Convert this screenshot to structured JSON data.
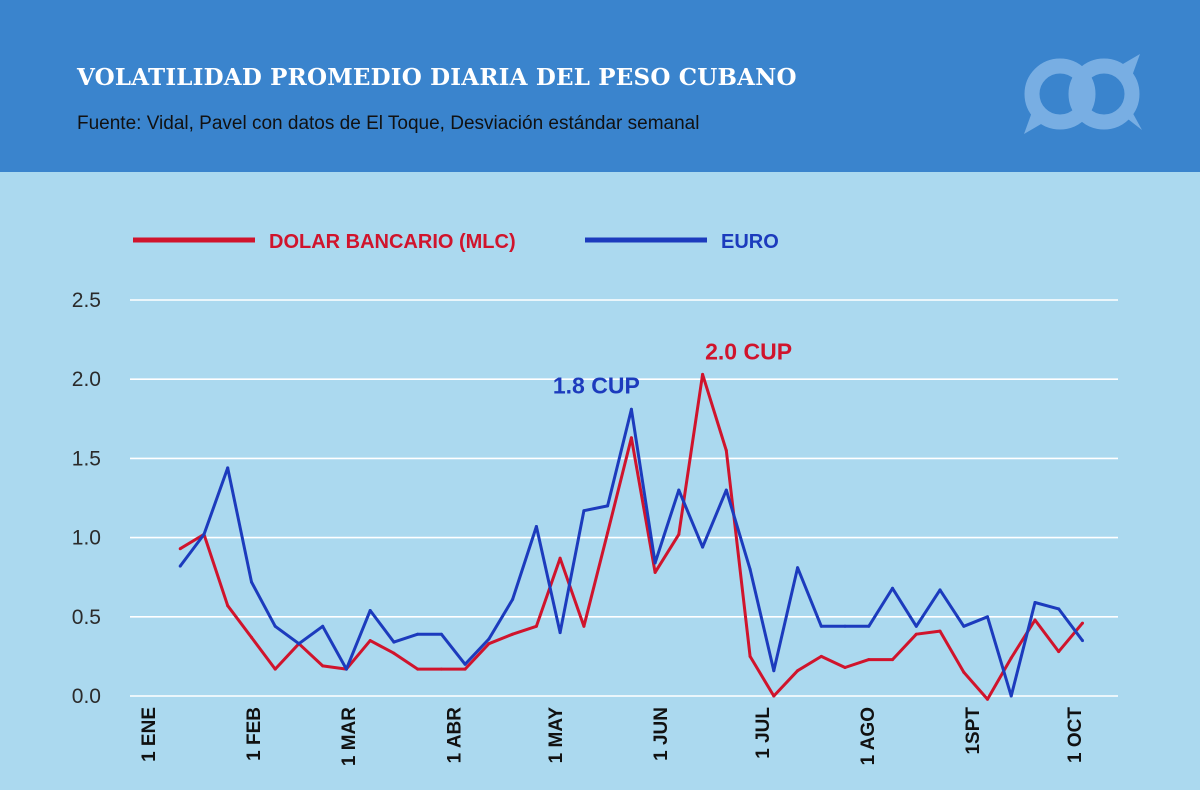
{
  "header": {
    "title": "VOLATILIDAD PROMEDIO DIARIA DEL PESO CUBANO",
    "subtitle": "Fuente: Vidal, Pavel con datos de El Toque, Desviación estándar semanal",
    "logo_icon": "linked-rings-logo-icon"
  },
  "colors": {
    "header_bg": "#3a84cd",
    "chart_bg": "#abd9ef",
    "mlc": "#d0142c",
    "euro": "#1c3bbd"
  },
  "chart_data": {
    "type": "line",
    "title": "VOLATILIDAD PROMEDIO DIARIA DEL PESO CUBANO",
    "xlabel": "",
    "ylabel": "",
    "ylim": [
      0,
      2.5
    ],
    "grid": true,
    "legend": "top-left",
    "yticks": [
      "0.0",
      "0.5",
      "1.0",
      "1.5",
      "2.0",
      "2.5"
    ],
    "ytick_values": [
      0,
      0.5,
      1.0,
      1.5,
      2.0,
      2.5
    ],
    "xlim": [
      0,
      273
    ],
    "month_ticks": [
      {
        "label": "1 ENE",
        "day": 0
      },
      {
        "label": "1 FEB",
        "day": 31
      },
      {
        "label": "1 MAR",
        "day": 59
      },
      {
        "label": "1 ABR",
        "day": 90
      },
      {
        "label": "1 MAY",
        "day": 120
      },
      {
        "label": "1 JUN",
        "day": 151
      },
      {
        "label": "1 JUL",
        "day": 181
      },
      {
        "label": "1 AGO",
        "day": 212
      },
      {
        "label": "1SPT",
        "day": 243
      },
      {
        "label": "1 OCT",
        "day": 273
      }
    ],
    "series": [
      {
        "name": "DOLAR BANCARIO (MLC)",
        "color": "#d0142c",
        "points": [
          [
            9.5,
            0.93
          ],
          [
            16.5,
            1.02
          ],
          [
            23.5,
            0.57
          ],
          [
            30.5,
            0.37
          ],
          [
            37.5,
            0.17
          ],
          [
            44.5,
            0.33
          ],
          [
            51.5,
            0.19
          ],
          [
            58.5,
            0.17
          ],
          [
            65.5,
            0.35
          ],
          [
            72.5,
            0.27
          ],
          [
            79.5,
            0.17
          ],
          [
            86.5,
            0.17
          ],
          [
            93.5,
            0.17
          ],
          [
            100.5,
            0.33
          ],
          [
            107.5,
            0.39
          ],
          [
            114.5,
            0.44
          ],
          [
            121.5,
            0.87
          ],
          [
            128.5,
            0.44
          ],
          [
            135.5,
            1.03
          ],
          [
            142.5,
            1.63
          ],
          [
            149.5,
            0.78
          ],
          [
            156.5,
            1.02
          ],
          [
            163.5,
            2.03
          ],
          [
            170.5,
            1.55
          ],
          [
            177.5,
            0.25
          ],
          [
            184.5,
            0.0
          ],
          [
            191.5,
            0.16
          ],
          [
            198.5,
            0.25
          ],
          [
            205.5,
            0.18
          ],
          [
            212.5,
            0.23
          ],
          [
            219.5,
            0.23
          ],
          [
            226.5,
            0.39
          ],
          [
            233.5,
            0.41
          ],
          [
            240.5,
            0.15
          ],
          [
            247.5,
            -0.02
          ],
          [
            254.5,
            0.24
          ],
          [
            261.5,
            0.48
          ],
          [
            268.5,
            0.28
          ],
          [
            275.5,
            0.46
          ]
        ]
      },
      {
        "name": "EURO",
        "color": "#1c3bbd",
        "points": [
          [
            9.5,
            0.82
          ],
          [
            16.5,
            1.02
          ],
          [
            23.5,
            1.44
          ],
          [
            30.5,
            0.72
          ],
          [
            37.5,
            0.44
          ],
          [
            44.5,
            0.33
          ],
          [
            51.5,
            0.44
          ],
          [
            58.5,
            0.17
          ],
          [
            65.5,
            0.54
          ],
          [
            72.5,
            0.34
          ],
          [
            79.5,
            0.39
          ],
          [
            86.5,
            0.39
          ],
          [
            93.5,
            0.2
          ],
          [
            100.5,
            0.36
          ],
          [
            107.5,
            0.61
          ],
          [
            114.5,
            1.07
          ],
          [
            121.5,
            0.4
          ],
          [
            128.5,
            1.17
          ],
          [
            135.5,
            1.2
          ],
          [
            142.5,
            1.81
          ],
          [
            149.5,
            0.84
          ],
          [
            156.5,
            1.3
          ],
          [
            163.5,
            0.94
          ],
          [
            170.5,
            1.3
          ],
          [
            177.5,
            0.8
          ],
          [
            184.5,
            0.16
          ],
          [
            191.5,
            0.81
          ],
          [
            198.5,
            0.44
          ],
          [
            205.5,
            0.44
          ],
          [
            212.5,
            0.44
          ],
          [
            219.5,
            0.68
          ],
          [
            226.5,
            0.44
          ],
          [
            233.5,
            0.67
          ],
          [
            240.5,
            0.44
          ],
          [
            247.5,
            0.5
          ],
          [
            254.5,
            0.0
          ],
          [
            261.5,
            0.59
          ],
          [
            268.5,
            0.55
          ],
          [
            275.5,
            0.35
          ]
        ]
      }
    ],
    "annotations": [
      {
        "text": "1.8 CUP",
        "series": "EURO",
        "x": 142.5,
        "y": 1.81,
        "color": "#1c3bbd"
      },
      {
        "text": "2.0 CUP",
        "series": "DOLAR BANCARIO (MLC)",
        "x": 163.5,
        "y": 2.03,
        "color": "#d0142c"
      }
    ]
  }
}
